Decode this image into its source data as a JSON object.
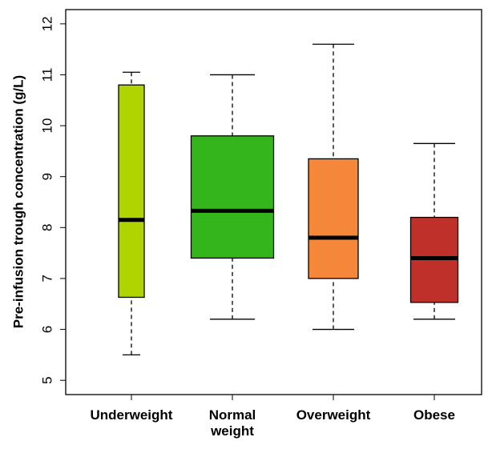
{
  "chart_data": {
    "type": "box",
    "y_label": "Pre-infusion trough concentration (g/L)",
    "categories": [
      "Underweight",
      "Normal weight",
      "Overweight",
      "Obese"
    ],
    "boxes": [
      {
        "low": 5.5,
        "q1": 6.63,
        "median": 8.15,
        "q3": 10.8,
        "high": 11.05,
        "color": "#b0d400"
      },
      {
        "low": 6.2,
        "q1": 7.4,
        "median": 8.33,
        "q3": 9.8,
        "high": 11.0,
        "color": "#33b51b"
      },
      {
        "low": 6.0,
        "q1": 7.0,
        "median": 7.8,
        "q3": 9.35,
        "high": 11.6,
        "color": "#f5873a"
      },
      {
        "low": 6.2,
        "q1": 6.53,
        "median": 7.4,
        "q3": 8.2,
        "high": 9.65,
        "color": "#c0302a"
      }
    ],
    "ylim": [
      4.72,
      12.28
    ],
    "yticks": [
      5,
      6,
      7,
      8,
      9,
      10,
      11,
      12
    ]
  }
}
